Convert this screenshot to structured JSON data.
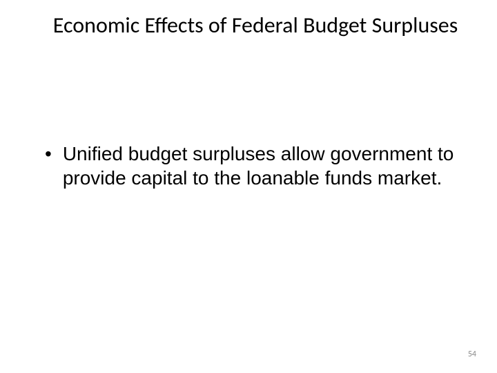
{
  "slide": {
    "title": "Economic Effects of Federal Budget Surpluses",
    "bullets": [
      {
        "text": "Unified budget surpluses allow government to provide capital to the loanable funds market."
      }
    ],
    "pageNumber": "54"
  },
  "style": {
    "background_color": "#ffffff",
    "title_fontsize": 32,
    "title_color": "#000000",
    "body_fontsize": 28,
    "body_color": "#000000",
    "page_number_fontsize": 12,
    "page_number_color": "#898989"
  }
}
